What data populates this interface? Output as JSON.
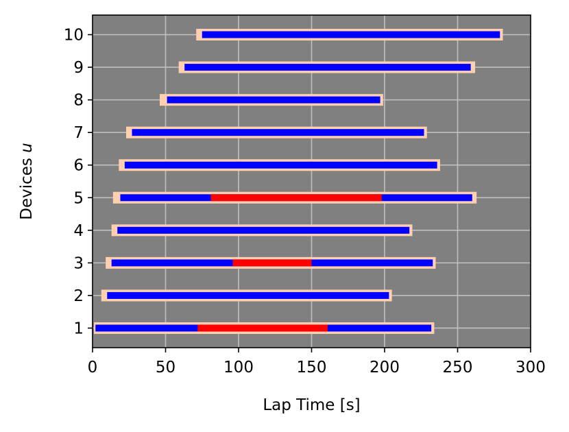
{
  "chart_data": {
    "type": "gantt",
    "xlabel": "Lap Time [s]",
    "ylabel_text": "Devices ",
    "ylabel_var": "u",
    "xlim": [
      0,
      300
    ],
    "ylim": [
      0.4,
      10.6
    ],
    "x_ticks": [
      0,
      50,
      100,
      150,
      200,
      250,
      300
    ],
    "y_ticks": [
      1,
      2,
      3,
      4,
      5,
      6,
      7,
      8,
      9,
      10
    ],
    "grid": true,
    "colors": {
      "background": "#808080",
      "grid": "#c0c0c0",
      "outer_bar": "#ffd0b0",
      "active": "#0000ff",
      "interrupted": "#ff0000"
    },
    "devices": [
      {
        "device": 1,
        "outer": [
          1,
          234
        ],
        "active": [
          2,
          232
        ],
        "interrupted": [
          [
            72,
            161
          ]
        ]
      },
      {
        "device": 2,
        "outer": [
          6,
          205
        ],
        "active": [
          10,
          203
        ],
        "interrupted": []
      },
      {
        "device": 3,
        "outer": [
          9,
          235
        ],
        "active": [
          13,
          233
        ],
        "interrupted": [
          [
            96,
            150
          ]
        ]
      },
      {
        "device": 4,
        "outer": [
          13,
          219
        ],
        "active": [
          17,
          217
        ],
        "interrupted": []
      },
      {
        "device": 5,
        "outer": [
          14,
          263
        ],
        "active": [
          19,
          260
        ],
        "interrupted": [
          [
            81,
            198
          ]
        ]
      },
      {
        "device": 6,
        "outer": [
          18,
          238
        ],
        "active": [
          22,
          236
        ],
        "interrupted": []
      },
      {
        "device": 7,
        "outer": [
          23,
          229
        ],
        "active": [
          27,
          227
        ],
        "interrupted": []
      },
      {
        "device": 8,
        "outer": [
          46,
          199
        ],
        "active": [
          51,
          197
        ],
        "interrupted": []
      },
      {
        "device": 9,
        "outer": [
          59,
          262
        ],
        "active": [
          63,
          259
        ],
        "interrupted": []
      },
      {
        "device": 10,
        "outer": [
          71,
          281
        ],
        "active": [
          75,
          279
        ],
        "interrupted": []
      }
    ]
  }
}
